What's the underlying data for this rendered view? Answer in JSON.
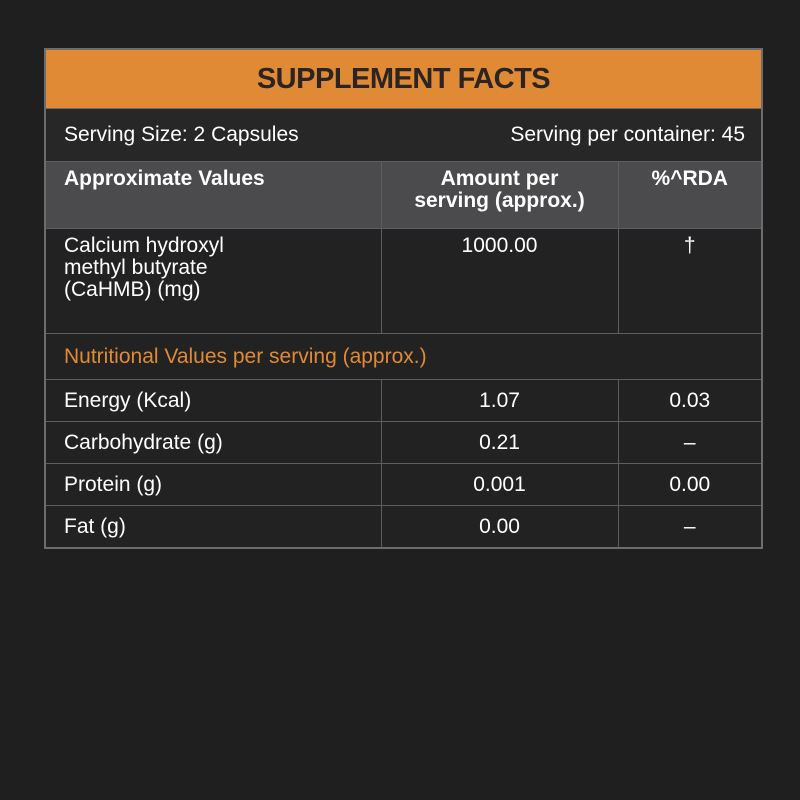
{
  "header": {
    "title": "SUPPLEMENT FACTS"
  },
  "serving": {
    "size": "Serving Size: 2 Capsules",
    "per_container": "Serving per container: 45"
  },
  "table": {
    "columns": [
      "Approximate Values",
      "Amount per serving (approx.)",
      "%^RDA"
    ],
    "rows": [
      [
        "Calcium hydroxyl methyl butyrate (CaHMB) (mg)",
        "1000.00",
        "†"
      ]
    ],
    "section_label": "Nutritional Values per serving (approx.)",
    "nutrition_rows": [
      [
        "Energy (Kcal)",
        "1.07",
        "0.03"
      ],
      [
        "Carbohydrate (g)",
        "0.21",
        "–"
      ],
      [
        "Protein (g)",
        "0.001",
        "0.00"
      ],
      [
        "Fat (g)",
        "0.00",
        "–"
      ]
    ]
  }
}
